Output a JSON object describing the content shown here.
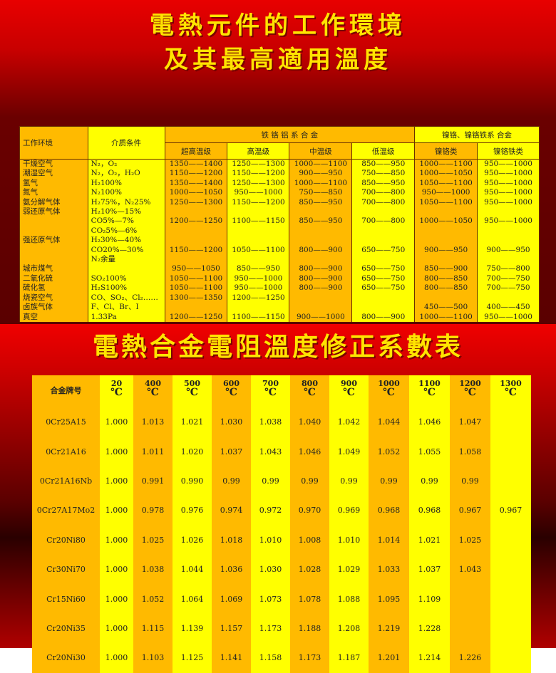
{
  "title1_line1": "電熱元件的工作環境",
  "title1_line2": "及其最高適用溫度",
  "title2": "電熱合金電阻溫度修正系數表",
  "colors": {
    "orange": "#ffba00",
    "yellow": "#ffff00",
    "title": "#ffe400",
    "background": "#d00000"
  },
  "env_table": {
    "h_env": "工作环境",
    "h_medium": "介质条件",
    "h_group1": "铁 铬 铝 系 合 金",
    "h_group2": "镍铬、镍铬铁系 合金",
    "sub": [
      "超高温级",
      "高温级",
      "中温级",
      "低温级",
      "镍铬类",
      "镍铬铁类"
    ],
    "rows": [
      [
        "干燥空气",
        "N₂，O₂",
        "1350——1400",
        "1250——1300",
        "1000——1100",
        "850——950",
        "1000——1100",
        "950——1000"
      ],
      [
        "潮湿空气",
        "N₂，O₂，H₂O",
        "1150——1200",
        "1150——1200",
        "900——950",
        "750——850",
        "1000——1050",
        "950——1000"
      ],
      [
        "氢气",
        "H₂100%",
        "1350——1400",
        "1250——1300",
        "1000——1100",
        "850——950",
        "1050——1100",
        "950——1000"
      ],
      [
        "氮气",
        "N₂100%",
        "1000——1050",
        "950——1000",
        "750——850",
        "700——800",
        "950——1000",
        "950——1000"
      ],
      [
        "氨分解气体",
        "H₂75%，N₂25%",
        "1250——1300",
        "1150——1200",
        "850——950",
        "700——800",
        "1050——1100",
        "950——1000"
      ],
      [
        "弱还原气体",
        "H₂10%—15%",
        "",
        "",
        "",
        "",
        "",
        ""
      ],
      [
        "",
        "CO5%—7%",
        "1200——1250",
        "1100——1150",
        "850——950",
        "700——800",
        "1000——1050",
        "950——1000"
      ],
      [
        "",
        "CO₂5%—6%",
        "",
        "",
        "",
        "",
        "",
        ""
      ],
      [
        "强还原气体",
        "H₂30%—40%",
        "",
        "",
        "",
        "",
        "",
        ""
      ],
      [
        "",
        "CO20%—30%",
        "1150——1200",
        "1050——1100",
        "800——900",
        "650——750",
        "900——950",
        "900——950"
      ],
      [
        "",
        "N₂余量",
        "",
        "",
        "",
        "",
        "",
        ""
      ],
      [
        "城市煤气",
        "",
        "950——1050",
        "850——950",
        "800——900",
        "650——750",
        "850——900",
        "750——800"
      ],
      [
        "二氧化硫",
        "SO₂100%",
        "1050——1100",
        "950——1000",
        "800——900",
        "650——750",
        "800——850",
        "700——750"
      ],
      [
        "硫化氢",
        "H₂S100%",
        "1050——1100",
        "950——1000",
        "800——900",
        "650——750",
        "800——850",
        "700——750"
      ],
      [
        "烧瓷空气",
        "CO、SO₂、Cl₂……",
        "1300——1350",
        "1200——1250",
        "",
        "",
        "",
        ""
      ],
      [
        "卤族气体",
        "F、Cl、Br、I",
        "",
        "",
        "",
        "",
        "450——500",
        "400——450"
      ],
      [
        "真空",
        "1.33Pa",
        "1200——1250",
        "1100——1150",
        "900——1000",
        "800——900",
        "1000——1100",
        "950——1000"
      ]
    ]
  },
  "coef_table": {
    "h_alloy": "合金牌号",
    "temps": [
      "20",
      "400",
      "500",
      "600",
      "700",
      "800",
      "900",
      "1000",
      "1100",
      "1200",
      "1300"
    ],
    "unit": "℃",
    "rows": [
      [
        "0Cr25A15",
        "1.000",
        "1.013",
        "1.021",
        "1.030",
        "1.038",
        "1.040",
        "1.042",
        "1.044",
        "1.046",
        "1.047",
        ""
      ],
      [
        "0Cr21A16",
        "1.000",
        "1.011",
        "1.020",
        "1.037",
        "1.043",
        "1.046",
        "1.049",
        "1.052",
        "1.055",
        "1.058",
        ""
      ],
      [
        "0Cr21A16Nb",
        "1.000",
        "0.991",
        "0.990",
        "0.99",
        "0.99",
        "0.99",
        "0.99",
        "0.99",
        "0.99",
        "0.99",
        ""
      ],
      [
        "0Cr27A17Mo2",
        "1.000",
        "0.978",
        "0.976",
        "0.974",
        "0.972",
        "0.970",
        "0.969",
        "0.968",
        "0.968",
        "0.967",
        "0.967"
      ],
      [
        "Cr20Ni80",
        "1.000",
        "1.025",
        "1.026",
        "1.018",
        "1.010",
        "1.008",
        "1.010",
        "1.014",
        "1.021",
        "1.025",
        ""
      ],
      [
        "Cr30Ni70",
        "1.000",
        "1.038",
        "1.044",
        "1.036",
        "1.030",
        "1.028",
        "1.029",
        "1.033",
        "1.037",
        "1.043",
        ""
      ],
      [
        "Cr15Ni60",
        "1.000",
        "1.052",
        "1.064",
        "1.069",
        "1.073",
        "1.078",
        "1.088",
        "1.095",
        "1.109",
        "",
        ""
      ],
      [
        "Cr20Ni35",
        "1.000",
        "1.115",
        "1.139",
        "1.157",
        "1.173",
        "1.188",
        "1.208",
        "1.219",
        "1.228",
        "",
        ""
      ],
      [
        "Cr20Ni30",
        "1.000",
        "1.103",
        "1.125",
        "1.141",
        "1.158",
        "1.173",
        "1.187",
        "1.201",
        "1.214",
        "1.226",
        ""
      ]
    ]
  }
}
